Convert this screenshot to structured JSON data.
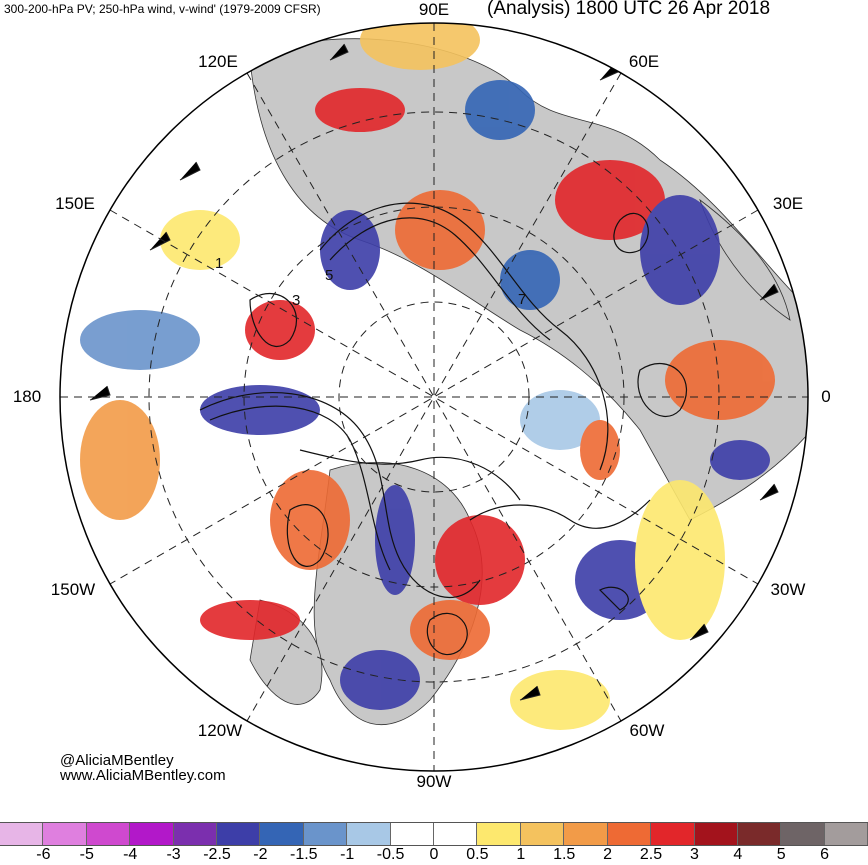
{
  "header": {
    "left_title": "300-200-hPa PV; 250-hPa wind, v-wind' (1979-2009 CFSR)",
    "right_title": "(Analysis) 1800 UTC 26 Apr 2018"
  },
  "credits": {
    "handle": "@AliciaMBentley",
    "website": "www.AliciaMBentley.com"
  },
  "map": {
    "projection": "north-polar-stereographic",
    "longitude_labels": {
      "e90": "90E",
      "e60": "60E",
      "e30": "30E",
      "zero": "0",
      "w30": "30W",
      "w60": "60W",
      "w90": "90W",
      "w120": "120W",
      "w150": "150W",
      "d180": "180",
      "e150": "150E",
      "e120": "120E"
    },
    "contour_labels": [
      "1",
      "3",
      "5",
      "7"
    ]
  },
  "colorbar": {
    "colors": [
      "#e7b5e7",
      "#df7fdf",
      "#cf49cf",
      "#b218c9",
      "#7b2fae",
      "#3d3ea8",
      "#3465b5",
      "#6a94cb",
      "#a8c8e6",
      "#ffffff",
      "#ffffff",
      "#fde86e",
      "#f4c25e",
      "#f29b48",
      "#ee6a34",
      "#e2262a",
      "#a3131c",
      "#7a2a2a",
      "#6e6466",
      "#a39c9c"
    ],
    "ticks": [
      "-6",
      "-5",
      "-4",
      "-3",
      "-2.5",
      "-2",
      "-1.5",
      "-1",
      "-0.5",
      "0",
      "0.5",
      "1",
      "1.5",
      "2",
      "2.5",
      "3",
      "4",
      "5",
      "6"
    ]
  }
}
